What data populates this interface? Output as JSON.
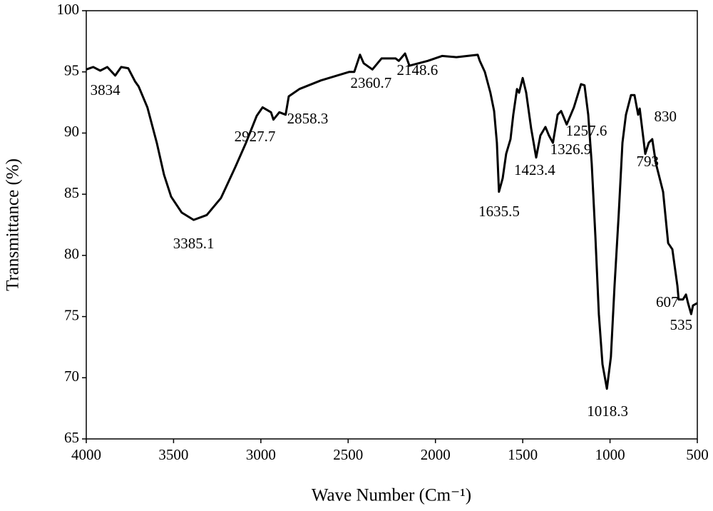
{
  "chart_data": {
    "type": "line",
    "x_label": "Wave Number (Cm⁻¹)",
    "y_label": "Transmittance (%)",
    "color": "#000000",
    "xlim": [
      4000,
      500
    ],
    "ylim": [
      65,
      100
    ],
    "xticks": [
      4000,
      3500,
      3000,
      2500,
      2000,
      1500,
      1000,
      500
    ],
    "yticks": [
      65,
      70,
      75,
      80,
      85,
      90,
      95,
      100
    ],
    "x": [
      4000,
      3960,
      3920,
      3880,
      3834,
      3800,
      3760,
      3720,
      3700,
      3650,
      3596,
      3555,
      3514,
      3453,
      3385,
      3310,
      3228,
      3147,
      3085,
      3024,
      2990,
      2942,
      2928,
      2894,
      2858,
      2840,
      2779,
      2656,
      2493,
      2465,
      2432,
      2411,
      2361,
      2309,
      2228,
      2210,
      2174,
      2149,
      2044,
      1962,
      1880,
      1758,
      1746,
      1717,
      1685,
      1664,
      1648,
      1636,
      1615,
      1595,
      1570,
      1554,
      1533,
      1521,
      1500,
      1480,
      1452,
      1423,
      1399,
      1370,
      1350,
      1327,
      1300,
      1280,
      1248,
      1207,
      1166,
      1146,
      1125,
      1105,
      1084,
      1064,
      1043,
      1018,
      995,
      974,
      950,
      929,
      909,
      880,
      860,
      839,
      830,
      798,
      778,
      758,
      737,
      696,
      667,
      643,
      614,
      607,
      582,
      565,
      553,
      535,
      525,
      500
    ],
    "values": [
      95.2,
      95.4,
      95.1,
      95.4,
      94.7,
      95.4,
      95.3,
      94.2,
      93.8,
      92.1,
      89.2,
      86.6,
      84.8,
      83.5,
      82.9,
      83.3,
      84.7,
      87.2,
      89.2,
      91.4,
      92.1,
      91.7,
      91.1,
      91.7,
      91.5,
      93.0,
      93.6,
      94.3,
      95.0,
      95.0,
      96.4,
      95.7,
      95.2,
      96.1,
      96.1,
      95.9,
      96.5,
      95.5,
      95.9,
      96.3,
      96.2,
      96.4,
      95.9,
      95.0,
      93.3,
      91.8,
      89.2,
      85.2,
      86.3,
      88.3,
      89.5,
      91.5,
      93.6,
      93.3,
      94.5,
      93.3,
      90.4,
      88.0,
      89.8,
      90.5,
      89.8,
      89.2,
      91.5,
      91.8,
      90.7,
      92.1,
      94.0,
      93.9,
      91.5,
      87.5,
      81.6,
      75.2,
      71.1,
      69.1,
      71.7,
      77.5,
      83.4,
      89.2,
      91.5,
      93.1,
      93.1,
      91.5,
      92.0,
      88.3,
      89.2,
      89.5,
      87.5,
      85.2,
      81.0,
      80.5,
      77.5,
      76.4,
      76.4,
      76.8,
      76.1,
      75.2,
      75.9,
      76.1
    ],
    "annotations": [
      3834,
      3385.1,
      2927.7,
      2858.3,
      2360.7,
      2148.6,
      1635.5,
      1423.4,
      1326.9,
      1257.6,
      1018.3,
      830,
      793,
      607,
      535
    ]
  }
}
